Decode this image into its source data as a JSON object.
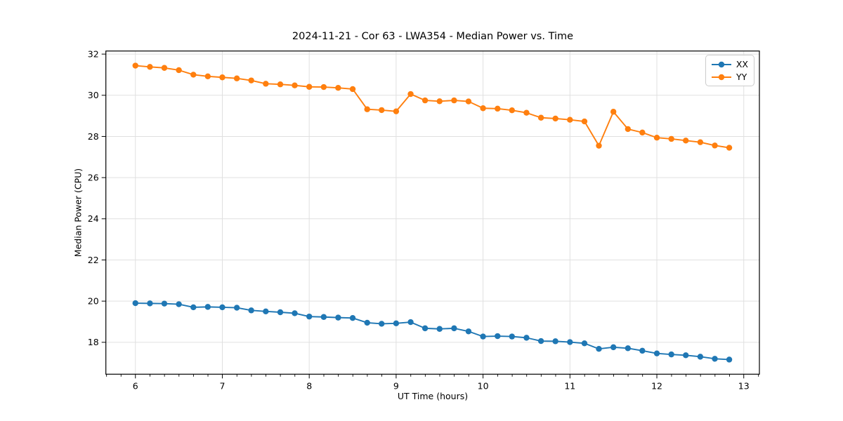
{
  "figure": {
    "title": "2024-11-21 - Cor 63 - LWA354 - Median Power vs. Time",
    "xlabel": "UT Time (hours)",
    "ylabel": "Median Power (CPU)"
  },
  "chart_data": {
    "type": "line",
    "title": "2024-11-21 - Cor 63 - LWA354 - Median Power vs. Time",
    "xlabel": "UT Time (hours)",
    "ylabel": "Median Power (CPU)",
    "xlim": [
      5.66,
      13.18
    ],
    "ylim": [
      16.45,
      32.15
    ],
    "xticks": [
      6,
      7,
      8,
      9,
      10,
      11,
      12,
      13
    ],
    "yticks": [
      18,
      20,
      22,
      24,
      26,
      28,
      30,
      32
    ],
    "x_minor_step": 0.1667,
    "grid": "major",
    "grid_color": "#e0e0e0",
    "legend_position": "upper right",
    "x": [
      6.0,
      6.167,
      6.333,
      6.5,
      6.667,
      6.833,
      7.0,
      7.167,
      7.333,
      7.5,
      7.667,
      7.833,
      8.0,
      8.167,
      8.333,
      8.5,
      8.667,
      8.833,
      9.0,
      9.167,
      9.333,
      9.5,
      9.667,
      9.833,
      10.0,
      10.167,
      10.333,
      10.5,
      10.667,
      10.833,
      11.0,
      11.167,
      11.333,
      11.5,
      11.667,
      11.833,
      12.0,
      12.167,
      12.333,
      12.5,
      12.667,
      12.833
    ],
    "series": [
      {
        "name": "XX",
        "color": "#1f77b4",
        "values": [
          19.9,
          19.89,
          19.88,
          19.85,
          19.7,
          19.72,
          19.7,
          19.68,
          19.55,
          19.5,
          19.46,
          19.41,
          19.25,
          19.23,
          19.2,
          19.18,
          18.95,
          18.9,
          18.92,
          18.98,
          18.68,
          18.65,
          18.68,
          18.53,
          18.28,
          18.3,
          18.28,
          18.22,
          18.06,
          18.05,
          18.01,
          17.95,
          17.68,
          17.76,
          17.71,
          17.59,
          17.46,
          17.41,
          17.37,
          17.3,
          17.2,
          17.16
        ]
      },
      {
        "name": "YY",
        "color": "#ff7f0e",
        "values": [
          31.44,
          31.38,
          31.33,
          31.22,
          31.0,
          30.92,
          30.87,
          30.82,
          30.72,
          30.56,
          30.53,
          30.48,
          30.41,
          30.4,
          30.36,
          30.3,
          29.32,
          29.28,
          29.22,
          30.06,
          29.75,
          29.71,
          29.75,
          29.7,
          29.37,
          29.35,
          29.27,
          29.15,
          28.91,
          28.87,
          28.81,
          28.73,
          27.55,
          29.2,
          28.36,
          28.19,
          27.94,
          27.88,
          27.8,
          27.72,
          27.56,
          27.45
        ]
      }
    ]
  }
}
